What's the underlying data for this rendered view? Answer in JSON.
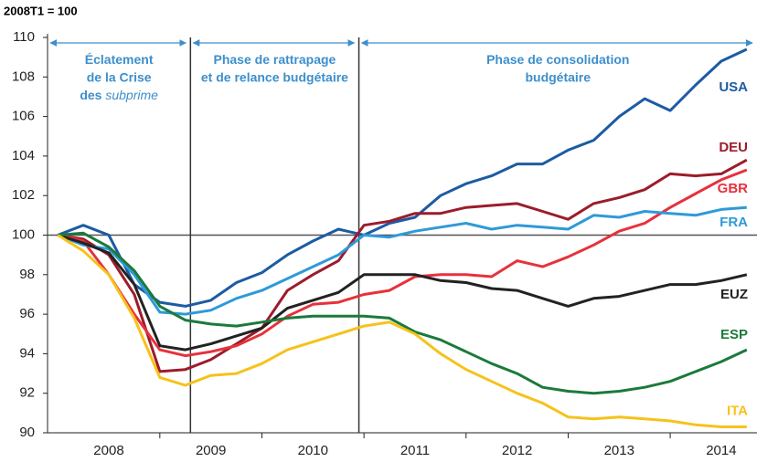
{
  "chart_data": {
    "type": "line",
    "unit_label": "2008T1 = 100",
    "x": [
      2008,
      2008.25,
      2008.5,
      2008.75,
      2009,
      2009.25,
      2009.5,
      2009.75,
      2010,
      2010.25,
      2010.5,
      2010.75,
      2011,
      2011.25,
      2011.5,
      2011.75,
      2012,
      2012.25,
      2012.5,
      2012.75,
      2013,
      2013.25,
      2013.5,
      2013.75,
      2014,
      2014.25,
      2014.5,
      2014.75
    ],
    "xlim": [
      2007.9,
      2014.85
    ],
    "xticks": [
      2009,
      2010,
      2011,
      2012,
      2013,
      2014
    ],
    "year_labels": [
      2008,
      2009,
      2010,
      2011,
      2012,
      2013,
      2014
    ],
    "ylim": [
      90,
      110
    ],
    "yticks": [
      90,
      92,
      94,
      96,
      98,
      100,
      102,
      104,
      106,
      108,
      110
    ],
    "reference_line": 100,
    "series": [
      {
        "name": "USA",
        "color": "#1d5ba3",
        "values": [
          100,
          100.5,
          100,
          97.5,
          96.6,
          96.4,
          96.7,
          97.6,
          98.1,
          99.0,
          99.7,
          100.3,
          100.0,
          100.6,
          100.9,
          102.0,
          102.6,
          103.0,
          103.6,
          103.6,
          104.3,
          104.8,
          106.0,
          106.9,
          106.3,
          107.6,
          108.8,
          109.4
        ]
      },
      {
        "name": "DEU",
        "color": "#9c1c2b",
        "values": [
          100,
          99.8,
          99.0,
          97.0,
          93.1,
          93.2,
          93.7,
          94.5,
          95.3,
          97.2,
          98.0,
          98.7,
          100.5,
          100.7,
          101.1,
          101.1,
          101.4,
          101.5,
          101.6,
          101.2,
          100.8,
          101.6,
          101.9,
          102.3,
          103.1,
          103.0,
          103.1,
          103.8
        ]
      },
      {
        "name": "GBR",
        "color": "#e7313c",
        "values": [
          100,
          99.7,
          98.0,
          96.0,
          94.2,
          93.9,
          94.1,
          94.4,
          95.0,
          95.9,
          96.5,
          96.6,
          97.0,
          97.2,
          97.9,
          98.0,
          98.0,
          97.9,
          98.7,
          98.4,
          98.9,
          99.5,
          100.2,
          100.6,
          101.4,
          102.1,
          102.8,
          103.3
        ]
      },
      {
        "name": "FRA",
        "color": "#2e9ad8",
        "values": [
          100,
          99.5,
          99.3,
          98.0,
          96.1,
          96.0,
          96.2,
          96.8,
          97.2,
          97.8,
          98.4,
          99.0,
          100.0,
          99.9,
          100.2,
          100.4,
          100.6,
          100.3,
          100.5,
          100.4,
          100.3,
          101.0,
          100.9,
          101.2,
          101.1,
          101.0,
          101.3,
          101.4
        ]
      },
      {
        "name": "EUZ",
        "color": "#222222",
        "values": [
          100,
          99.6,
          99.1,
          97.5,
          94.4,
          94.2,
          94.5,
          94.9,
          95.3,
          96.3,
          96.7,
          97.1,
          98.0,
          98.0,
          98.0,
          97.7,
          97.6,
          97.3,
          97.2,
          96.8,
          96.4,
          96.8,
          96.9,
          97.2,
          97.5,
          97.5,
          97.7,
          98.0
        ]
      },
      {
        "name": "ESP",
        "color": "#1b7a3b",
        "values": [
          100,
          100.1,
          99.4,
          98.2,
          96.4,
          95.7,
          95.5,
          95.4,
          95.6,
          95.8,
          95.9,
          95.9,
          95.9,
          95.8,
          95.1,
          94.7,
          94.1,
          93.5,
          93.0,
          92.3,
          92.1,
          92.0,
          92.1,
          92.3,
          92.6,
          93.1,
          93.6,
          94.2
        ]
      },
      {
        "name": "ITA",
        "color": "#f6c21b",
        "values": [
          100,
          99.2,
          98.0,
          95.8,
          92.8,
          92.4,
          92.9,
          93.0,
          93.5,
          94.2,
          94.6,
          95.0,
          95.4,
          95.6,
          95.0,
          94.0,
          93.2,
          92.6,
          92.0,
          91.5,
          90.8,
          90.7,
          90.8,
          90.7,
          90.6,
          90.4,
          90.3,
          90.3
        ]
      }
    ],
    "phases": [
      {
        "start": 2007.9,
        "end": 2009.3,
        "lines": [
          "Éclatement",
          "de la Crise",
          "des"
        ],
        "italic": "subprime"
      },
      {
        "start": 2009.3,
        "end": 2010.95,
        "lines": [
          "Phase de rattrapage",
          "et de relance budgétaire"
        ]
      },
      {
        "start": 2010.95,
        "end": 2014.85,
        "lines": [
          "Phase de consolidation",
          "budgétaire"
        ]
      }
    ]
  }
}
